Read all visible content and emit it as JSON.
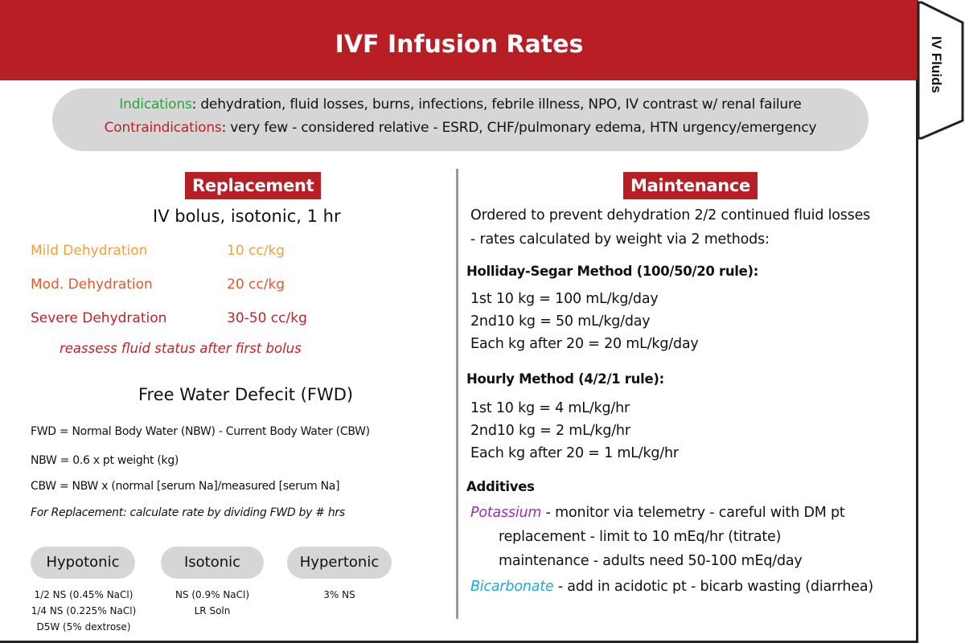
{
  "header": {
    "title": "IVF Infusion Rates"
  },
  "tab": {
    "label": "IV Fluids"
  },
  "indications": {
    "label": "Indications",
    "text": ": dehydration, fluid losses, burns, infections, febrile illness, NPO, IV contrast w/ renal failure",
    "contra_label": "Contraindications",
    "contra_text": ": very few - considered relative - ESRD, CHF/pulmonary edema, HTN urgency/emergency"
  },
  "replacement": {
    "badge": "Replacement",
    "subtitle": "IV bolus, isotonic, 1 hr",
    "rows": [
      {
        "label": "Mild Dehydration",
        "rate": "10 cc/kg"
      },
      {
        "label": "Mod. Dehydration",
        "rate": "20 cc/kg"
      },
      {
        "label": "Severe Dehydration",
        "rate": "30-50 cc/kg"
      }
    ],
    "note": "reassess fluid status after first bolus"
  },
  "colors": {
    "header": "#b81f25",
    "indications": "#2ea33a",
    "contraindications": "#c31f28",
    "mild": "#f4a03a",
    "moderate": "#e8572c",
    "severe": "#c41f2b",
    "potassium": "#9b2fae",
    "bicarbonate": "#1fa8df"
  },
  "fwd": {
    "title": "Free Water Defecit (FWD)",
    "line1": "FWD = Normal Body Water (NBW) - Current Body Water (CBW)",
    "line2": "NBW = 0.6 x pt weight (kg)",
    "line3": "CBW = NBW x (normal [serum Na]/measured [serum Na]",
    "line4": "For Replacement: calculate rate by dividing FWD by # hrs"
  },
  "tonicity": {
    "hypotonic": {
      "label": "Hypotonic",
      "items": [
        "1/2 NS (0.45% NaCl)",
        "1/4 NS (0.225% NaCl)",
        "D5W (5% dextrose)"
      ]
    },
    "isotonic": {
      "label": "Isotonic",
      "items": [
        "NS (0.9% NaCl)",
        "LR Soln"
      ]
    },
    "hypertonic": {
      "label": "Hypertonic",
      "items": [
        "3% NS"
      ]
    }
  },
  "maintenance": {
    "badge": "Maintenance",
    "intro1": "Ordered to prevent dehydration 2/2 continued fluid losses",
    "intro2": "- rates calculated by weight via 2 methods:",
    "holliday_head": "Holliday-Segar Method (100/50/20 rule):",
    "holliday": [
      "1st 10 kg = 100 mL/kg/day",
      "2nd10 kg = 50 mL/kg/day",
      "Each kg after 20 = 20 mL/kg/day"
    ],
    "hourly_head": "Hourly Method (4/2/1 rule):",
    "hourly": [
      "1st 10 kg = 4 mL/kg/hr",
      "2nd10 kg = 2 mL/kg/hr",
      "Each kg after 20 = 1 mL/kg/hr"
    ],
    "additives_head": "Additives",
    "potassium_label": "Potassium",
    "potassium_text": " - monitor via telemetry - careful with DM pt",
    "potassium_line2": "replacement - limit to 10 mEq/hr (titrate)",
    "potassium_line3": "maintenance - adults need 50-100 mEq/day",
    "bicarb_label": "Bicarbonate",
    "bicarb_text": " - add in acidotic pt - bicarb wasting (diarrhea)"
  }
}
